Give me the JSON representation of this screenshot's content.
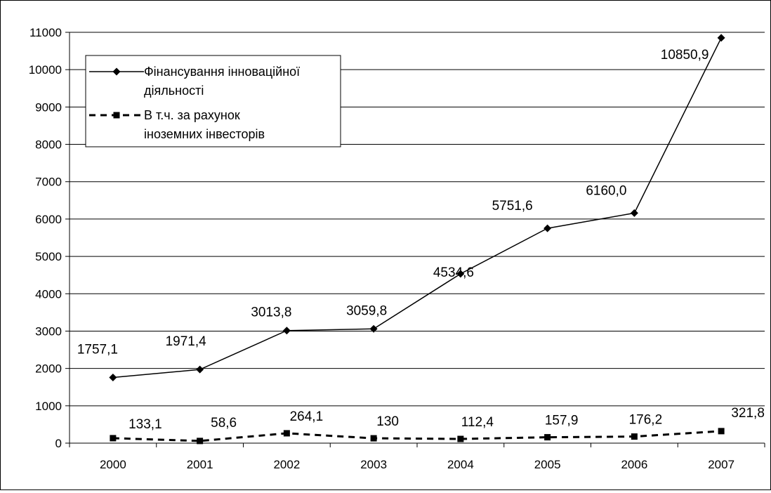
{
  "chart_data": {
    "type": "line",
    "categories": [
      "2000",
      "2001",
      "2002",
      "2003",
      "2004",
      "2005",
      "2006",
      "2007"
    ],
    "ylim": [
      0,
      11000
    ],
    "yticks": [
      0,
      1000,
      2000,
      3000,
      4000,
      5000,
      6000,
      7000,
      8000,
      9000,
      10000,
      11000
    ],
    "grid": true,
    "legend_position": "top-left",
    "series": [
      {
        "name": "Фінансування інноваційної діяльності",
        "name_lines": [
          "Фінансування інноваційної",
          "діяльності"
        ],
        "values": [
          1757.1,
          1971.4,
          3013.8,
          3059.8,
          4534.6,
          5751.6,
          6160.0,
          10850.9
        ],
        "labels": [
          "1757,1",
          "1971,4",
          "3013,8",
          "3059,8",
          "4534,6",
          "5751,6",
          "6160,0",
          "10850,9"
        ],
        "line_style": "solid",
        "marker": "diamond",
        "color": "#000000"
      },
      {
        "name": "В т.ч. за рахунок іноземних інвесторів",
        "name_lines": [
          "В т.ч. за рахунок",
          "іноземних інвесторів"
        ],
        "values": [
          133.1,
          58.6,
          264.1,
          130,
          112.4,
          157.9,
          176.2,
          321.8
        ],
        "labels": [
          "133,1",
          "58,6",
          "264,1",
          "130",
          "112,4",
          "157,9",
          "176,2",
          "321,8"
        ],
        "line_style": "dashed",
        "marker": "square",
        "color": "#000000"
      }
    ]
  }
}
